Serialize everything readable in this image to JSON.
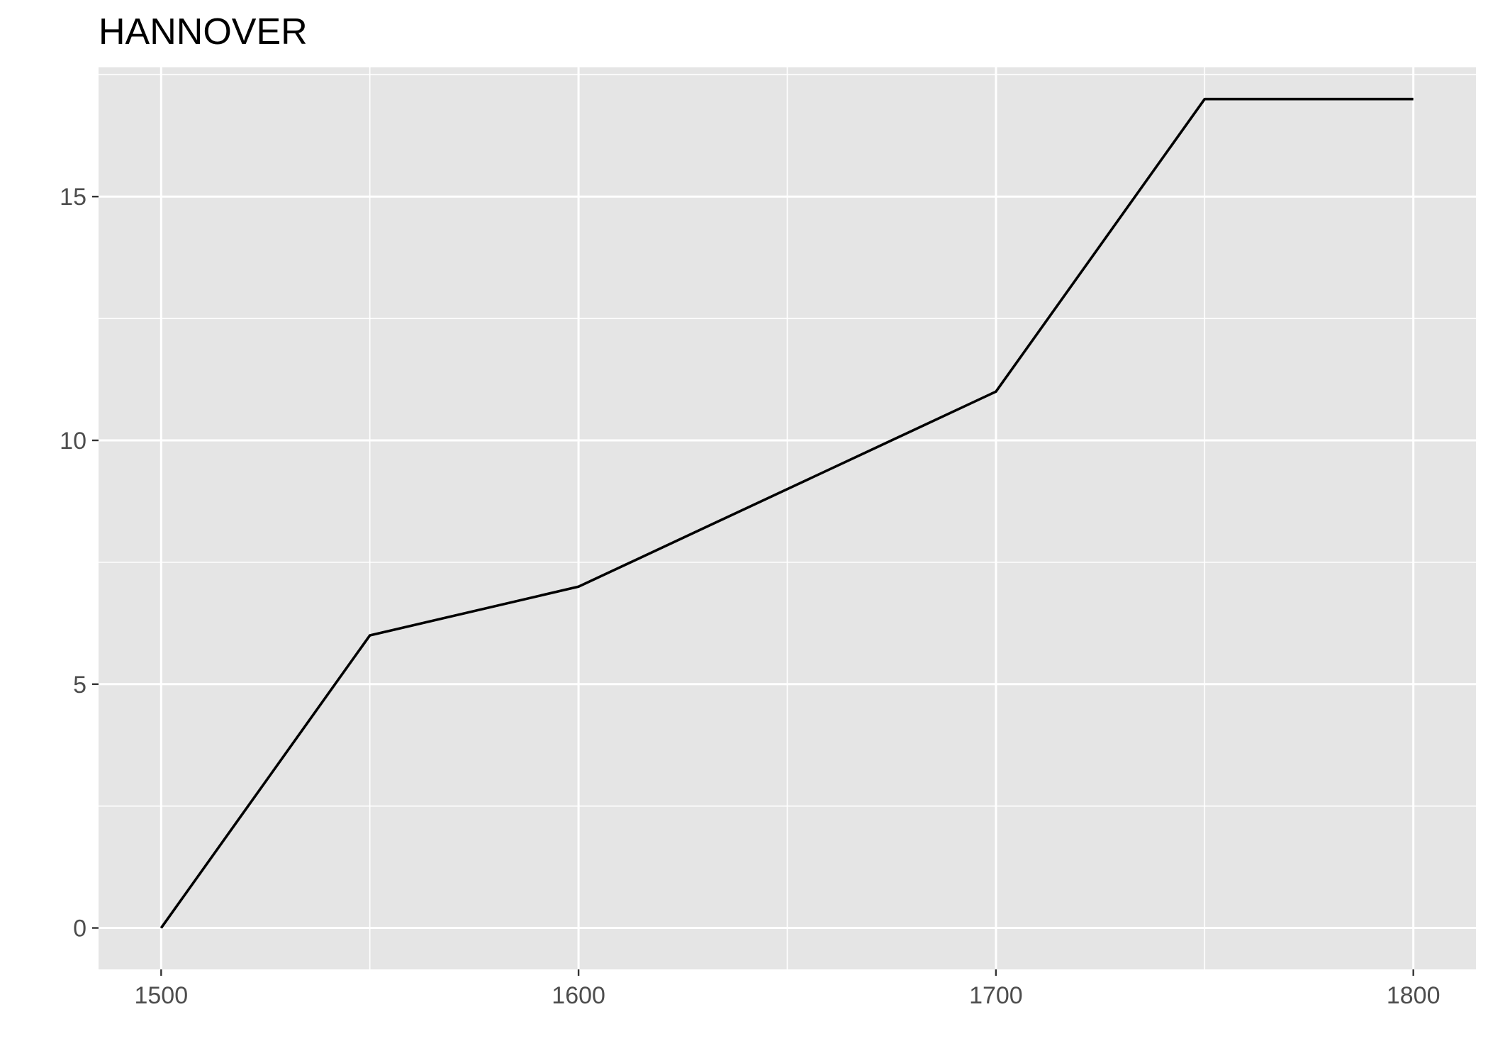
{
  "chart_data": {
    "type": "line",
    "title": "HANNOVER",
    "xlabel": "",
    "ylabel": "",
    "x": [
      1500,
      1550,
      1600,
      1650,
      1700,
      1750,
      1800
    ],
    "series": [
      {
        "values": [
          0,
          6,
          7,
          9,
          11,
          17,
          17
        ]
      }
    ],
    "xlim": [
      1485,
      1815
    ],
    "ylim": [
      -0.85,
      17.65
    ],
    "x_ticks": [
      1500,
      1600,
      1700,
      1800
    ],
    "x_tick_labels": [
      "1500",
      "1600",
      "1700",
      "1800"
    ],
    "x_minor_ticks": [
      1550,
      1650,
      1750
    ],
    "y_ticks": [
      0,
      5,
      10,
      15
    ],
    "y_tick_labels": [
      "0",
      "5",
      "10",
      "15"
    ],
    "y_minor_ticks": [
      2.5,
      7.5,
      12.5,
      17.5
    ],
    "grid": true,
    "legend": "none",
    "colors": {
      "panel_background": "#e5e5e5",
      "grid": "#ffffff",
      "line": "#000000",
      "tick_text": "#4d4d4d",
      "tick_mark": "#333333"
    }
  }
}
